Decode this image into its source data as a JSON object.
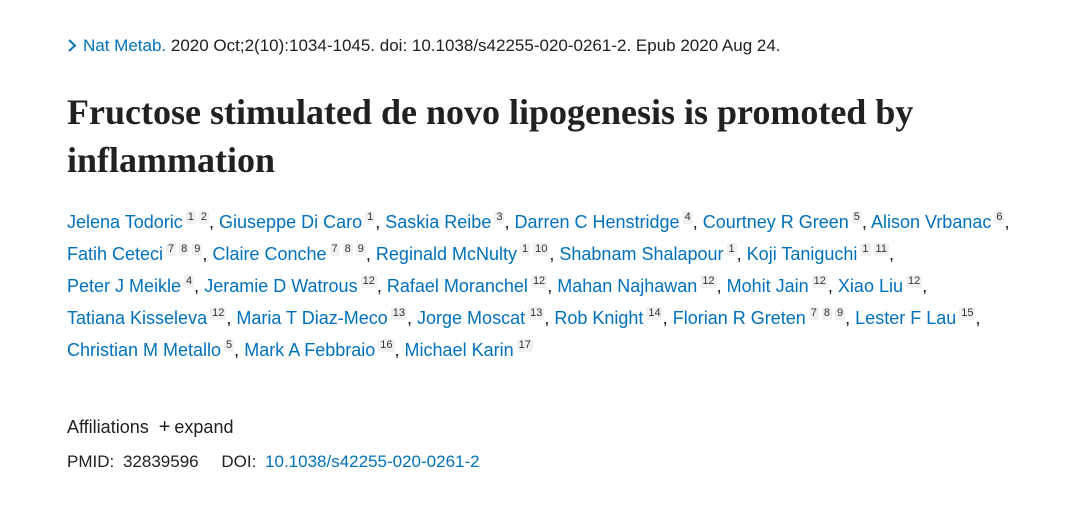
{
  "citation": {
    "journal": "Nat Metab.",
    "details": "2020 Oct;2(10):1034-1045. doi: 10.1038/s42255-020-0261-2. Epub 2020 Aug 24."
  },
  "title": "Fructose stimulated de novo lipogenesis is promoted by inflammation",
  "authors": [
    {
      "name": "Jelena Todoric",
      "affiliations": [
        "1",
        "2"
      ],
      "separator": ","
    },
    {
      "name": "Giuseppe Di Caro",
      "affiliations": [
        "1"
      ],
      "separator": ","
    },
    {
      "name": "Saskia Reibe",
      "affiliations": [
        "3"
      ],
      "separator": ","
    },
    {
      "name": "Darren C Henstridge",
      "affiliations": [
        "4"
      ],
      "separator": ","
    },
    {
      "name": "Courtney R Green",
      "affiliations": [
        "5"
      ],
      "separator": ","
    },
    {
      "name": "Alison Vrbanac",
      "affiliations": [
        "6"
      ],
      "separator": ","
    },
    {
      "name": "Fatih Ceteci",
      "affiliations": [
        "7",
        "8",
        "9"
      ],
      "separator": ","
    },
    {
      "name": "Claire Conche",
      "affiliations": [
        "7",
        "8",
        "9"
      ],
      "separator": ","
    },
    {
      "name": "Reginald McNulty",
      "affiliations": [
        "1",
        "10"
      ],
      "separator": ","
    },
    {
      "name": "Shabnam Shalapour",
      "affiliations": [
        "1"
      ],
      "separator": ","
    },
    {
      "name": "Koji Taniguchi",
      "affiliations": [
        "1",
        "11"
      ],
      "separator": ","
    },
    {
      "name": "Peter J Meikle",
      "affiliations": [
        "4"
      ],
      "separator": ","
    },
    {
      "name": "Jeramie D Watrous",
      "affiliations": [
        "12"
      ],
      "separator": ","
    },
    {
      "name": "Rafael Moranchel",
      "affiliations": [
        "12"
      ],
      "separator": ","
    },
    {
      "name": "Mahan Najhawan",
      "affiliations": [
        "12"
      ],
      "separator": ","
    },
    {
      "name": "Mohit Jain",
      "affiliations": [
        "12"
      ],
      "separator": ","
    },
    {
      "name": "Xiao Liu",
      "affiliations": [
        "12"
      ],
      "separator": ","
    },
    {
      "name": "Tatiana Kisseleva",
      "affiliations": [
        "12"
      ],
      "separator": ","
    },
    {
      "name": "Maria T Diaz-Meco",
      "affiliations": [
        "13"
      ],
      "separator": ","
    },
    {
      "name": "Jorge Moscat",
      "affiliations": [
        "13"
      ],
      "separator": ","
    },
    {
      "name": "Rob Knight",
      "affiliations": [
        "14"
      ],
      "separator": ","
    },
    {
      "name": "Florian R Greten",
      "affiliations": [
        "7",
        "8",
        "9"
      ],
      "separator": ","
    },
    {
      "name": "Lester F Lau",
      "affiliations": [
        "15"
      ],
      "separator": ","
    },
    {
      "name": "Christian M Metallo",
      "affiliations": [
        "5"
      ],
      "separator": ","
    },
    {
      "name": "Mark A Febbraio",
      "affiliations": [
        "16"
      ],
      "separator": ","
    },
    {
      "name": "Michael Karin",
      "affiliations": [
        "17"
      ]
    }
  ],
  "affiliations_toggle": {
    "label": "Affiliations",
    "action": "expand"
  },
  "identifiers": {
    "pmid_label": "PMID:",
    "pmid": "32839596",
    "doi_label": "DOI:",
    "doi": "10.1038/s42255-020-0261-2"
  }
}
